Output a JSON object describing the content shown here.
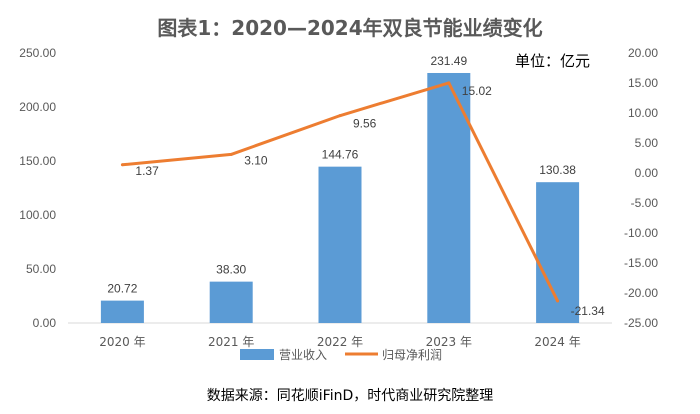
{
  "chart_data": {
    "type": "bar",
    "title": "图表1：2020—2024年双良节能业绩变化",
    "unit_label": "单位：亿元",
    "categories": [
      "2020 年",
      "2021 年",
      "2022 年",
      "2023 年",
      "2024 年"
    ],
    "series": [
      {
        "name": "营业收入",
        "type": "bar",
        "axis": "left",
        "color": "#5B9BD5",
        "values": [
          20.72,
          38.3,
          144.76,
          231.49,
          130.38
        ],
        "labels": [
          "20.72",
          "38.30",
          "144.76",
          "231.49",
          "130.38"
        ]
      },
      {
        "name": "归母净利润",
        "type": "line",
        "axis": "right",
        "color": "#ED7D31",
        "values": [
          1.37,
          3.1,
          9.56,
          15.02,
          -21.34
        ],
        "labels": [
          "1.37",
          "3.10",
          "9.56",
          "15.02",
          "-21.34"
        ]
      }
    ],
    "y_left": {
      "min": 0,
      "max": 250,
      "step": 50,
      "tick_labels": [
        "0.00",
        "50.00",
        "100.00",
        "150.00",
        "200.00",
        "250.00"
      ]
    },
    "y_right": {
      "min": -25,
      "max": 20,
      "step": 5,
      "tick_labels": [
        "-25.00",
        "-20.00",
        "-15.00",
        "-10.00",
        "-5.00",
        "0.00",
        "5.00",
        "10.00",
        "15.00",
        "20.00"
      ]
    },
    "grid": false,
    "legend_position": "bottom",
    "source": "数据来源：同花顺iFinD，时代商业研究院整理"
  }
}
